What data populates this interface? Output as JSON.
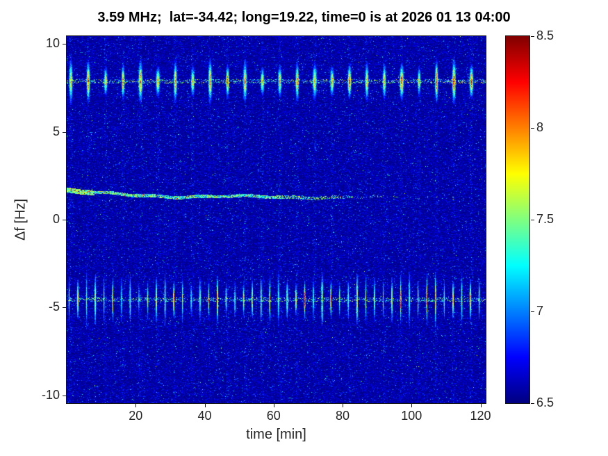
{
  "colors": {
    "background": "#ffffff",
    "axis": "#262626",
    "title_text": "#000000",
    "noise_floor_blue": "#00009b"
  },
  "chart_data": {
    "type": "heatmap",
    "subtype": "spectrogram",
    "title": "3.59 MHz;  lat=-34.42; long=19.22, time=0 is at 2026 01 13 04:00",
    "xlabel": "time [min]",
    "ylabel": "Δf [Hz]",
    "xlim": [
      0,
      121.5
    ],
    "ylim": [
      -10.45,
      10.45
    ],
    "x_ticks": [
      20,
      40,
      60,
      80,
      100,
      120
    ],
    "y_ticks": [
      10,
      5,
      0,
      -5,
      -10
    ],
    "colormap": "jet",
    "clim": [
      6.5,
      8.5
    ],
    "colorbar_ticks": [
      8.5,
      8,
      7.5,
      7,
      6.5
    ],
    "grid": false,
    "legend": "none",
    "background_level": 6.55,
    "features": [
      {
        "name": "upper-pulse-row",
        "center_freq_hz": 7.87,
        "period_min": 5.05,
        "offset_min": 1.2,
        "peak_level": 8.5,
        "description": "periodic dark-red/orange vertical pulse streaks near +7.9 Hz with faint dotted trail between pulses"
      },
      {
        "name": "lower-pulse-row",
        "center_freq_hz": -4.55,
        "period_min": 2.53,
        "offset_min": 0.7,
        "peak_level": 8.2,
        "description": "dense periodic multicolor (cyan/green/red) vertical streaks near -4.5 Hz with faint dotted trail"
      },
      {
        "name": "doppler-trace",
        "start_freq_hz": 1.66,
        "end_freq_hz": 1.28,
        "fade_start_min": 55,
        "fade_end_min": 97,
        "level": 7.4,
        "description": "thin cyan-green trace slowly descending from ~1.7 Hz to ~1.3 Hz, fading after ~55-90 min"
      }
    ],
    "noise": {
      "seed": 1337,
      "mean_excess": 0.095,
      "speckle_prob": 0.006
    }
  }
}
